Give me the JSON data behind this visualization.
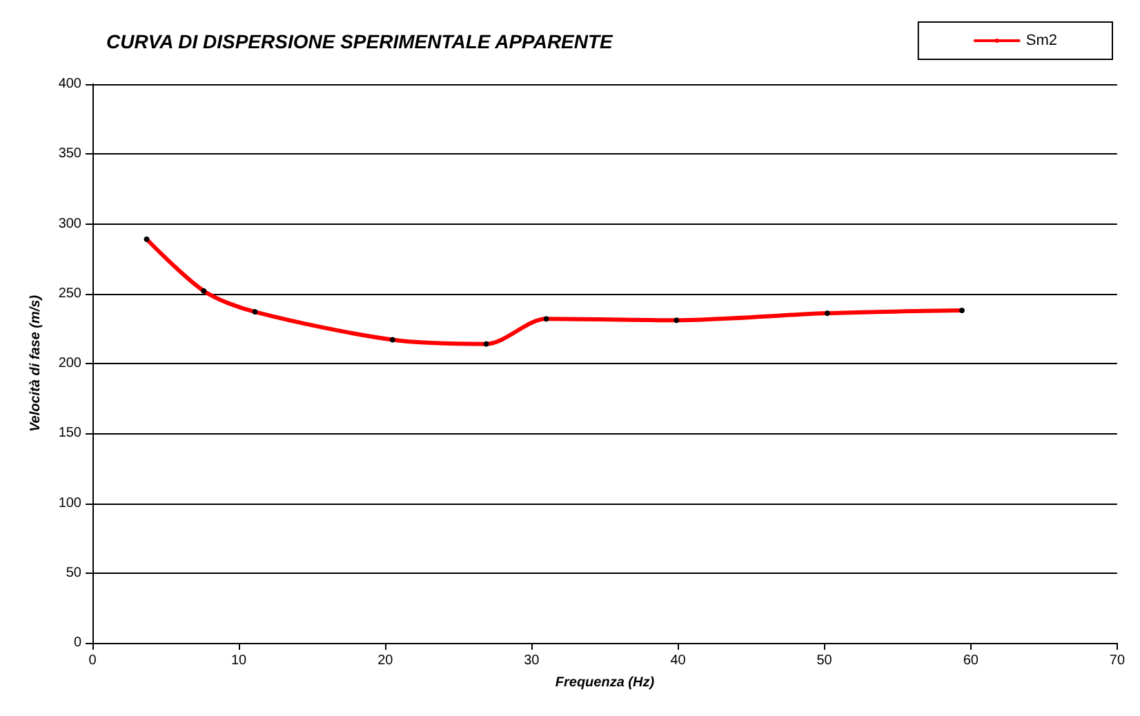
{
  "chart_data": {
    "type": "line",
    "title": "CURVA DI DISPERSIONE SPERIMENTALE APPARENTE",
    "xlabel": "Frequenza (Hz)",
    "ylabel": "Velocità di fase (m/s)",
    "series": [
      {
        "name": "Sm2",
        "color": "#ff0000",
        "x": [
          3.7,
          7.6,
          11.1,
          20.5,
          26.9,
          31.0,
          39.9,
          50.2,
          59.4
        ],
        "values": [
          289,
          252,
          237,
          217,
          214,
          232,
          231,
          236,
          238
        ]
      }
    ],
    "xlim": [
      0,
      70
    ],
    "xticks": [
      0,
      10,
      20,
      30,
      40,
      50,
      60,
      70
    ],
    "ylim": [
      0,
      400
    ],
    "yticks": [
      0,
      50,
      100,
      150,
      200,
      250,
      300,
      350,
      400
    ],
    "grid": "y",
    "legend": "top right",
    "marker": "circle",
    "line_style": "solid"
  }
}
